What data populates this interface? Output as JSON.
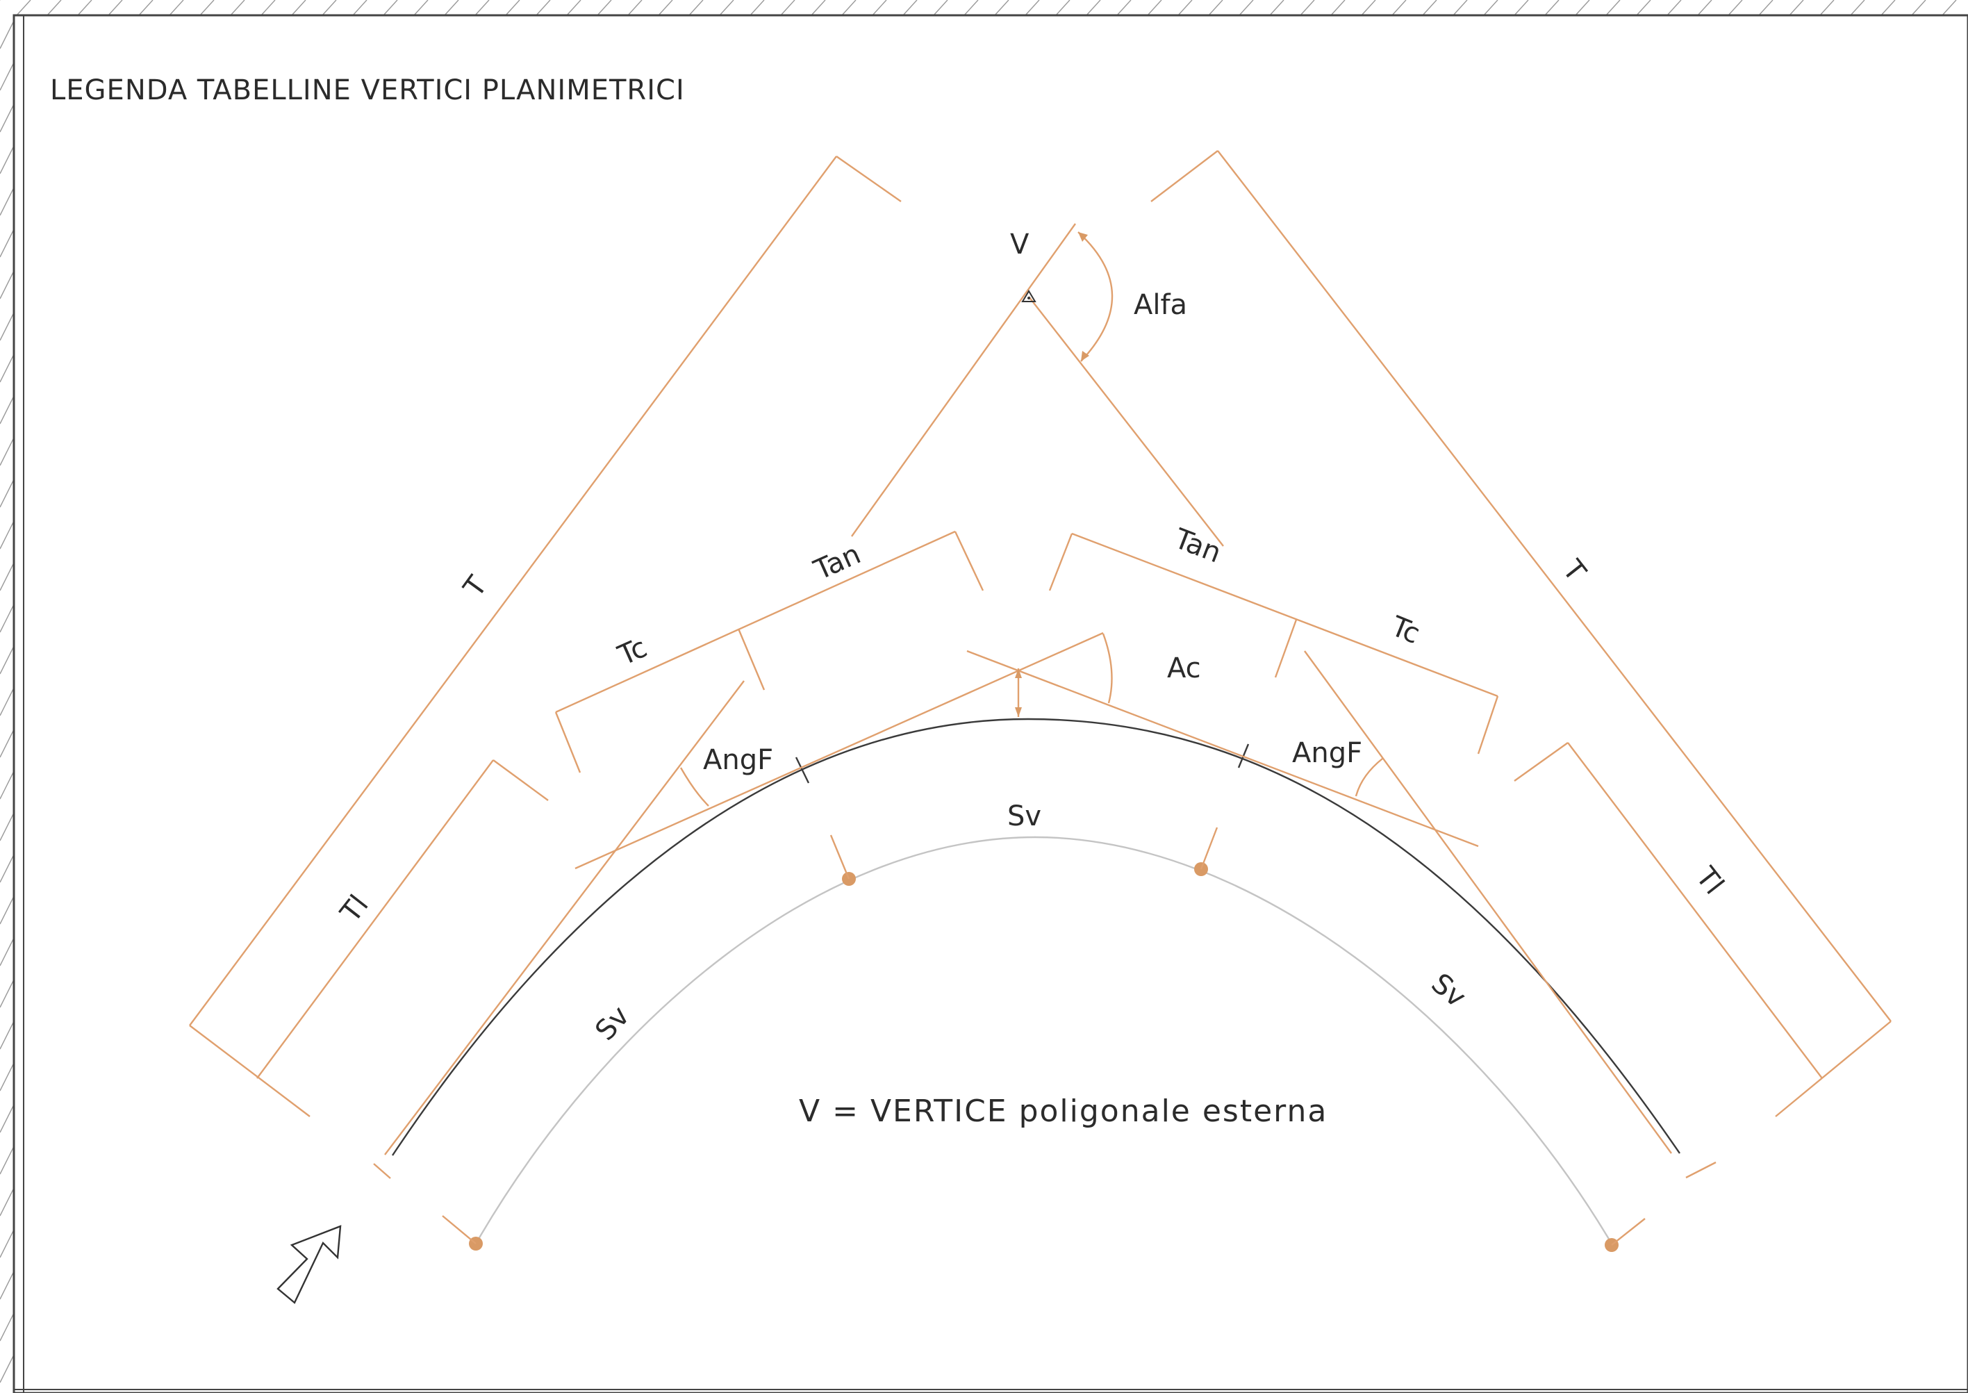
{
  "title": "LEGENDA TABELLINE VERTICI PLANIMETRICI",
  "labels": {
    "vertex": "V",
    "alfa": "Alfa",
    "t_left": "T",
    "t_right": "T",
    "tan_left": "Tan",
    "tan_right": "Tan",
    "tc_left": "Tc",
    "tc_right": "Tc",
    "ac": "Ac",
    "angf_left": "AngF",
    "angf_right": "AngF",
    "tl_left": "Tl",
    "tl_right": "Tl",
    "sv_top": "Sv",
    "sv_left": "Sv",
    "sv_right": "Sv"
  },
  "note": "V = VERTICE poligonale esterna",
  "colors": {
    "dimension": "#e0a06e",
    "marker": "#d99a65",
    "curve": "#3a3a3a",
    "offset_curve": "#c4c4c4",
    "text": "#2b2b2b"
  },
  "icons": {
    "direction": "arrow-up-right-icon",
    "vertex": "triangle-icon",
    "marker": "dot-icon"
  }
}
